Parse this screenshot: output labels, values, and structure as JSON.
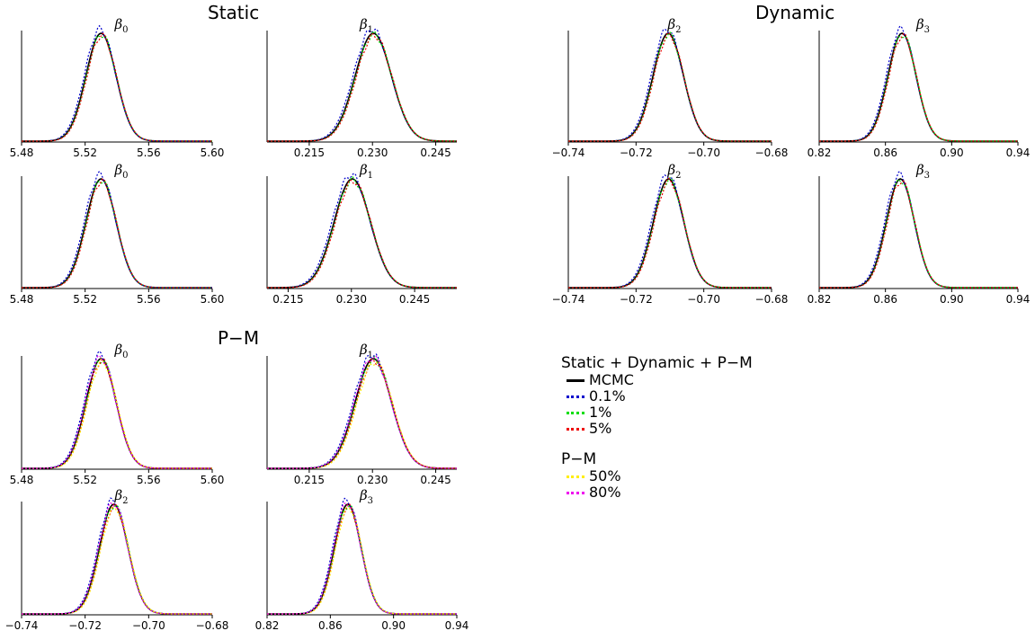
{
  "groups": [
    {
      "title": "Static"
    },
    {
      "title": "Dynamic"
    },
    {
      "title": "P−M"
    }
  ],
  "legend": {
    "section1_title": "Static + Dynamic + P−M",
    "section1_items": [
      {
        "label": "MCMC",
        "color": "#000000",
        "style": "solid"
      },
      {
        "label": "0.1%",
        "color": "#0000cc",
        "style": "dotted"
      },
      {
        "label": "1%",
        "color": "#00dd00",
        "style": "dotted"
      },
      {
        "label": "5%",
        "color": "#ee0000",
        "style": "dotted"
      }
    ],
    "section2_title": "P−M",
    "section2_items": [
      {
        "label": "50%",
        "color": "#ffee00",
        "style": "dotted"
      },
      {
        "label": "80%",
        "color": "#ee00ee",
        "style": "dotted"
      }
    ]
  },
  "chart_data": [
    {
      "group": "Static",
      "type": "line",
      "title": "β0",
      "xlim": [
        5.48,
        5.6
      ],
      "xticks": [
        5.48,
        5.52,
        5.56,
        5.6
      ],
      "xtick_labels": [
        "5.48",
        "5.52",
        "5.56",
        "5.60"
      ],
      "peak_x": 5.53,
      "spread": 0.0095,
      "series": [
        "MCMC",
        "0.1%",
        "1%",
        "5%"
      ]
    },
    {
      "group": "Static",
      "type": "line",
      "title": "β1",
      "xlim": [
        0.205,
        0.25
      ],
      "xticks": [
        0.215,
        0.23,
        0.245
      ],
      "xtick_labels": [
        "0.215",
        "0.230",
        "0.245"
      ],
      "peak_x": 0.2302,
      "spread": 0.0043,
      "series": [
        "MCMC",
        "0.1%",
        "1%",
        "5%"
      ]
    },
    {
      "group": "Static",
      "type": "line",
      "title": "β2",
      "xlim": [
        -0.74,
        -0.68
      ],
      "xticks": [
        -0.74,
        -0.72,
        -0.7,
        -0.68
      ],
      "xtick_labels": [
        "−0.74",
        "−0.72",
        "−0.70",
        "−0.68"
      ],
      "peak_x": -0.7105,
      "spread": 0.0045,
      "series": [
        "MCMC",
        "0.1%",
        "1%",
        "5%"
      ]
    },
    {
      "group": "Static",
      "type": "line",
      "title": "β3",
      "xlim": [
        0.82,
        0.94
      ],
      "xticks": [
        0.82,
        0.86,
        0.9,
        0.94
      ],
      "xtick_labels": [
        "0.82",
        "0.86",
        "0.90",
        "0.94"
      ],
      "peak_x": 0.87,
      "spread": 0.0085,
      "series": [
        "MCMC",
        "0.1%",
        "1%",
        "5%"
      ]
    },
    {
      "group": "Dynamic",
      "type": "line",
      "title": "β0",
      "xlim": [
        5.48,
        5.6
      ],
      "xticks": [
        5.48,
        5.52,
        5.56,
        5.6
      ],
      "xtick_labels": [
        "5.48",
        "5.52",
        "5.56",
        "5.60"
      ],
      "peak_x": 5.53,
      "spread": 0.0095,
      "series": [
        "MCMC",
        "0.1%",
        "1%",
        "5%"
      ]
    },
    {
      "group": "Dynamic",
      "type": "line",
      "title": "β1",
      "xlim": [
        0.21,
        0.255
      ],
      "xticks": [
        0.215,
        0.23,
        0.245
      ],
      "xtick_labels": [
        "0.215",
        "0.230",
        "0.245"
      ],
      "peak_x": 0.2302,
      "spread": 0.0043,
      "series": [
        "MCMC",
        "0.1%",
        "1%",
        "5%"
      ]
    },
    {
      "group": "Dynamic",
      "type": "line",
      "title": "β2",
      "xlim": [
        -0.74,
        -0.68
      ],
      "xticks": [
        -0.74,
        -0.72,
        -0.7,
        -0.68
      ],
      "xtick_labels": [
        "−0.74",
        "−0.72",
        "−0.70",
        "−0.68"
      ],
      "peak_x": -0.7104,
      "spread": 0.0045,
      "series": [
        "MCMC",
        "0.1%",
        "1%",
        "5%"
      ]
    },
    {
      "group": "Dynamic",
      "type": "line",
      "title": "β3",
      "xlim": [
        0.82,
        0.94
      ],
      "xticks": [
        0.82,
        0.86,
        0.9,
        0.94
      ],
      "xtick_labels": [
        "0.82",
        "0.86",
        "0.90",
        "0.94"
      ],
      "peak_x": 0.869,
      "spread": 0.0085,
      "series": [
        "MCMC",
        "0.1%",
        "1%",
        "5%"
      ]
    },
    {
      "group": "P−M",
      "type": "line",
      "title": "β0",
      "xlim": [
        5.48,
        5.6
      ],
      "xticks": [
        5.48,
        5.52,
        5.56,
        5.6
      ],
      "xtick_labels": [
        "5.48",
        "5.52",
        "5.56",
        "5.60"
      ],
      "peak_x": 5.53,
      "spread": 0.0095,
      "series": [
        "MCMC",
        "0.1%",
        "1%",
        "5%",
        "50%",
        "80%"
      ]
    },
    {
      "group": "P−M",
      "type": "line",
      "title": "β1",
      "xlim": [
        0.205,
        0.25
      ],
      "xticks": [
        0.215,
        0.23,
        0.245
      ],
      "xtick_labels": [
        "0.215",
        "0.230",
        "0.245"
      ],
      "peak_x": 0.2302,
      "spread": 0.0043,
      "series": [
        "MCMC",
        "0.1%",
        "1%",
        "5%",
        "50%",
        "80%"
      ]
    },
    {
      "group": "P−M",
      "type": "line",
      "title": "β2",
      "xlim": [
        -0.74,
        -0.68
      ],
      "xticks": [
        -0.74,
        -0.72,
        -0.7,
        -0.68
      ],
      "xtick_labels": [
        "−0.74",
        "−0.72",
        "−0.70",
        "−0.68"
      ],
      "peak_x": -0.711,
      "spread": 0.0045,
      "series": [
        "MCMC",
        "0.1%",
        "1%",
        "5%",
        "50%",
        "80%"
      ]
    },
    {
      "group": "P−M",
      "type": "line",
      "title": "β3",
      "xlim": [
        0.82,
        0.94
      ],
      "xticks": [
        0.82,
        0.86,
        0.9,
        0.94
      ],
      "xtick_labels": [
        "0.82",
        "0.86",
        "0.90",
        "0.94"
      ],
      "peak_x": 0.871,
      "spread": 0.0085,
      "series": [
        "MCMC",
        "0.1%",
        "1%",
        "5%",
        "50%",
        "80%"
      ]
    }
  ]
}
